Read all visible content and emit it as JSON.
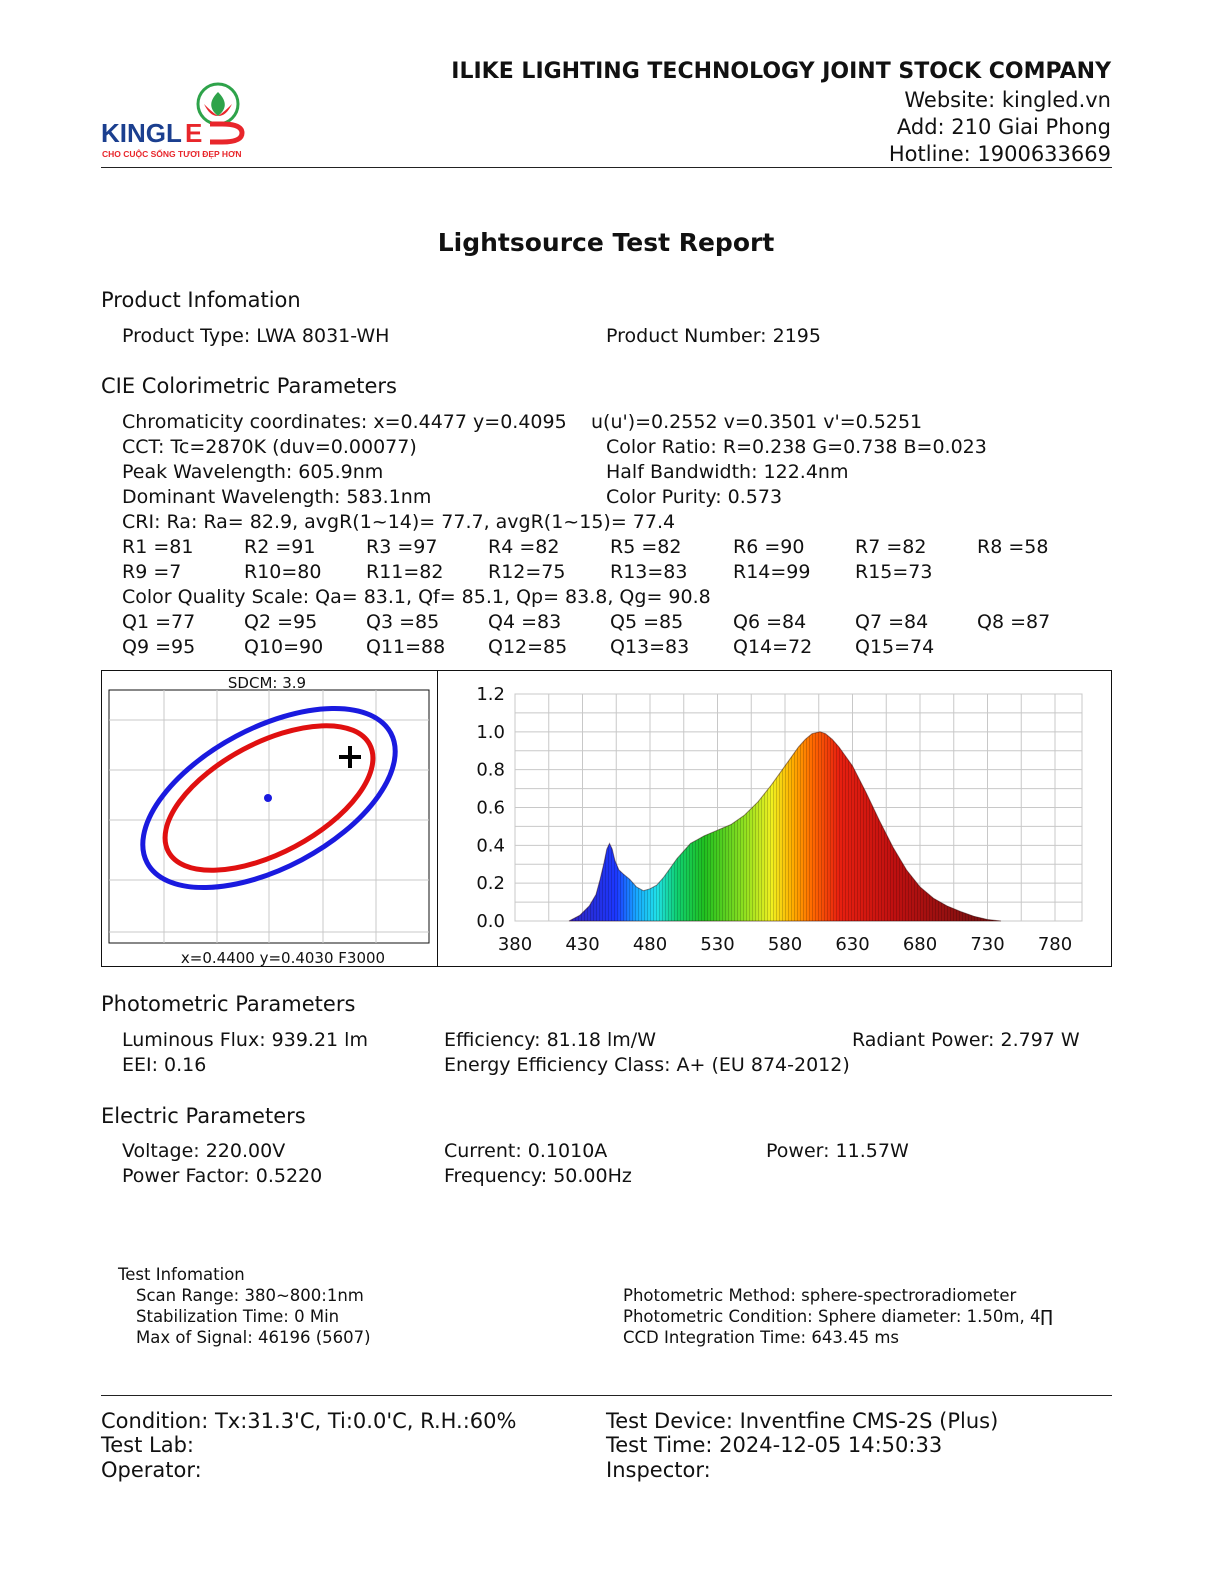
{
  "header": {
    "company": "ILIKE LIGHTING TECHNOLOGY JOINT STOCK COMPANY",
    "website": "Website: kingled.vn",
    "address": "Add: 210 Giai Phong",
    "hotline": "Hotline: 1900633669",
    "logo_text": "KINGLED",
    "logo_tagline": "CHO CUỘC SỐNG TƯƠI ĐẸP HƠN"
  },
  "title": "Lightsource Test Report",
  "product": {
    "heading": "Product Infomation",
    "type": "Product Type: LWA 8031-WH",
    "number": "Product Number: 2195"
  },
  "cie": {
    "heading": "CIE Colorimetric Parameters",
    "chromaticity": "Chromaticity coordinates: x=0.4477 y=0.4095",
    "uv": "u(u')=0.2552 v=0.3501 v'=0.5251",
    "cct": "CCT: Tc=2870K (duv=0.00077)",
    "color_ratio": "Color Ratio: R=0.238  G=0.738  B=0.023",
    "peak": "Peak Wavelength: 605.9nm",
    "half_bandwidth": "Half Bandwidth: 122.4nm",
    "dominant": "Dominant Wavelength: 583.1nm",
    "purity": "Color Purity: 0.573",
    "cri": "CRI: Ra: Ra= 82.9, avgR(1~14)= 77.7, avgR(1~15)= 77.4",
    "r_row1": [
      "R1 =81",
      "R2 =91",
      "R3 =97",
      "R4 =82",
      "R5 =82",
      "R6 =90",
      "R7 =82",
      "R8 =58"
    ],
    "r_row2": [
      "R9 =7",
      "R10=80",
      "R11=82",
      "R12=75",
      "R13=83",
      "R14=99",
      "R15=73"
    ],
    "cqs": "Color Quality Scale: Qa= 83.1, Qf= 85.1, Qp= 83.8, Qg= 90.8",
    "q_row1": [
      "Q1 =77",
      "Q2 =95",
      "Q3 =85",
      "Q4 =83",
      "Q5 =85",
      "Q6 =84",
      "Q7 =84",
      "Q8 =87"
    ],
    "q_row2": [
      "Q9 =95",
      "Q10=90",
      "Q11=88",
      "Q12=85",
      "Q13=83",
      "Q14=72",
      "Q15=74"
    ]
  },
  "sdcm": {
    "label": "SDCM:   3.9",
    "footer": "x=0.4400 y=0.4030 F3000",
    "colors": {
      "outer": "#1a1adf",
      "inner": "#e01010",
      "center": "#1a1adf",
      "marker": "#000000"
    }
  },
  "chart_data": {
    "type": "area",
    "xlim": [
      380,
      800
    ],
    "ylim": [
      0,
      1.2
    ],
    "x_ticks": [
      "380",
      "430",
      "480",
      "530",
      "580",
      "630",
      "680",
      "730",
      "780"
    ],
    "y_ticks": [
      "1.2",
      "1.0",
      "0.8",
      "0.6",
      "0.4",
      "0.2",
      "0.0"
    ],
    "grid": true,
    "x": [
      420,
      428,
      435,
      440,
      443,
      446,
      448,
      450,
      452,
      454,
      457,
      460,
      465,
      470,
      475,
      480,
      485,
      490,
      495,
      500,
      505,
      510,
      515,
      520,
      530,
      540,
      550,
      560,
      570,
      580,
      585,
      590,
      595,
      600,
      605.9,
      610,
      615,
      620,
      630,
      640,
      650,
      660,
      670,
      680,
      690,
      700,
      710,
      720,
      730,
      740
    ],
    "y": [
      0.0,
      0.03,
      0.08,
      0.14,
      0.22,
      0.31,
      0.38,
      0.41,
      0.38,
      0.32,
      0.27,
      0.25,
      0.22,
      0.18,
      0.16,
      0.17,
      0.19,
      0.23,
      0.28,
      0.33,
      0.37,
      0.41,
      0.43,
      0.45,
      0.48,
      0.51,
      0.56,
      0.63,
      0.72,
      0.82,
      0.87,
      0.92,
      0.96,
      0.99,
      1.0,
      0.99,
      0.96,
      0.92,
      0.82,
      0.68,
      0.53,
      0.39,
      0.27,
      0.18,
      0.12,
      0.08,
      0.05,
      0.025,
      0.008,
      0.0
    ]
  },
  "photometric": {
    "heading": "Photometric Parameters",
    "flux": "Luminous Flux: 939.21 lm",
    "efficiency": "Efficiency: 81.18 lm/W",
    "radiant": "Radiant Power: 2.797 W",
    "eei": "EEI:  0.16",
    "energy_class": "Energy Efficiency Class: A+ (EU 874-2012)"
  },
  "electric": {
    "heading": "Electric Parameters",
    "voltage": "Voltage: 220.00V",
    "current": "Current: 0.1010A",
    "power": "Power: 11.57W",
    "pf": "Power Factor: 0.5220",
    "frequency": "Frequency: 50.00Hz"
  },
  "test_info": {
    "heading": "Test Infomation",
    "scan": "Scan Range: 380~800:1nm",
    "stabilization": "Stabilization Time: 0 Min",
    "max_signal": "Max of Signal: 46196 (5607)",
    "method": "Photometric Method: sphere-spectroradiometer",
    "condition": "Photometric Condition: Sphere diameter: 1.50m, 4∏",
    "ccd": "CCD Integration Time: 643.45 ms"
  },
  "footer": {
    "condition": "Condition: Tx:31.3'C, Ti:0.0'C, R.H.:60%",
    "device": "Test Device: Inventfine CMS-2S (Plus)",
    "lab": "Test Lab:",
    "time": "Test Time: 2024-12-05 14:50:33",
    "operator": "Operator:",
    "inspector": "Inspector:"
  }
}
